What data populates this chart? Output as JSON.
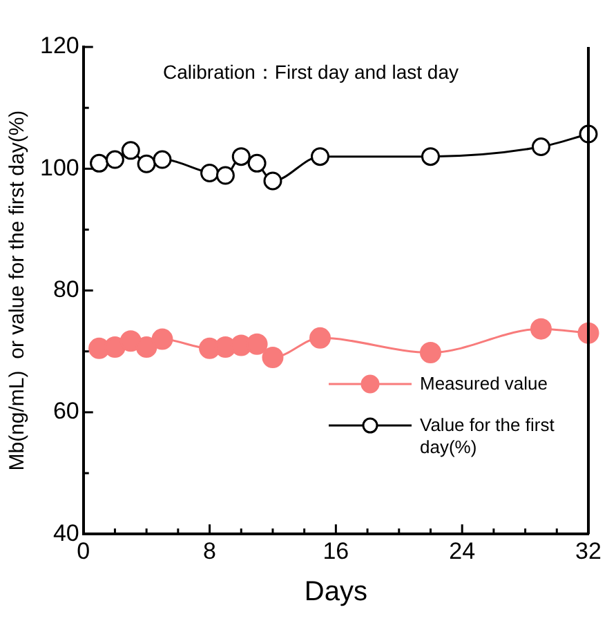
{
  "chart_data": {
    "type": "line",
    "xlabel": "Days",
    "ylabel": "Mb(ng/mL)  or value for the first day(%)",
    "annotations": [
      "Calibration：First day and last day"
    ],
    "xlim": [
      0,
      32
    ],
    "xticks": [
      0,
      {
        "value": 2,
        "label": null
      },
      {
        "value": 4,
        "label": null
      },
      {
        "value": 6,
        "label": null
      },
      8,
      {
        "value": 10,
        "label": null
      },
      {
        "value": 12,
        "label": null
      },
      {
        "value": 14,
        "label": null
      },
      16,
      {
        "value": 18,
        "label": null
      },
      {
        "value": 20,
        "label": null
      },
      {
        "value": 22,
        "label": null
      },
      24,
      {
        "value": 26,
        "label": null
      },
      {
        "value": 28,
        "label": null
      },
      {
        "value": 30,
        "label": null
      },
      32
    ],
    "ylim": [
      40,
      120
    ],
    "yticks": [
      40,
      {
        "value": 50,
        "label": null
      },
      60,
      {
        "value": 70,
        "label": null
      },
      80,
      {
        "value": 90,
        "label": null
      },
      100,
      {
        "value": 110,
        "label": null
      },
      120
    ],
    "grid": false,
    "legend": "bottom right",
    "x": [
      1,
      2,
      3,
      4,
      5,
      8,
      9,
      10,
      11,
      12,
      15,
      22,
      29,
      32
    ],
    "series": [
      {
        "name": "Measured value",
        "color": "#f87b7b",
        "marker": "circle",
        "values": [
          70.5,
          70.7,
          71.7,
          70.7,
          72,
          70.5,
          70.7,
          71,
          71.2,
          69,
          72.2,
          69.8,
          73.7,
          73
        ]
      },
      {
        "name": "Value for the first day(%)",
        "color": "#000000",
        "marker": "circle",
        "values": [
          100.9,
          101.5,
          103,
          100.8,
          101.5,
          99.3,
          98.9,
          102,
          100.9,
          98,
          102,
          102,
          103.6,
          105.7
        ]
      }
    ]
  }
}
